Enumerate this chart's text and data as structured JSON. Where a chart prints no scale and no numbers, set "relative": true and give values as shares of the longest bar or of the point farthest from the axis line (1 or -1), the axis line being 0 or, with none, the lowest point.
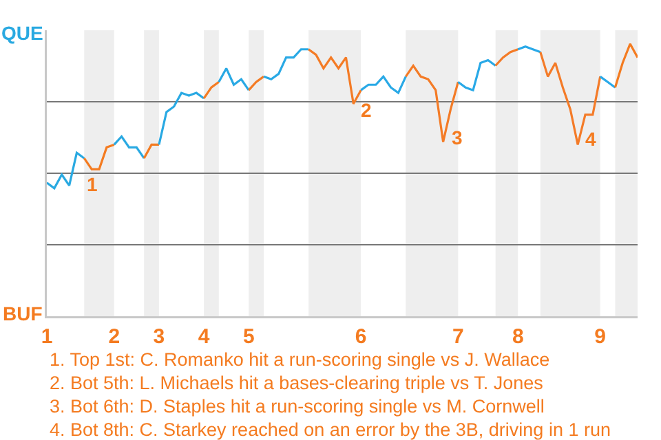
{
  "chart_data": {
    "type": "line",
    "relative": true,
    "marker": "none",
    "line_style": "solid",
    "grid": "y",
    "categories": [
      "1",
      null,
      null,
      null,
      null,
      null,
      null,
      null,
      null,
      "2",
      null,
      null,
      null,
      null,
      null,
      "3",
      null,
      null,
      null,
      null,
      null,
      "4",
      null,
      null,
      null,
      null,
      null,
      "5",
      null,
      null,
      null,
      null,
      null,
      null,
      null,
      null,
      null,
      null,
      null,
      null,
      null,
      null,
      "6",
      null,
      null,
      null,
      null,
      null,
      null,
      null,
      null,
      null,
      null,
      null,
      null,
      "7",
      null,
      null,
      null,
      null,
      null,
      null,
      null,
      "8",
      null,
      null,
      null,
      null,
      null,
      null,
      null,
      null,
      null,
      null,
      "9",
      null,
      null,
      null,
      null,
      null
    ],
    "series": [
      {
        "color": "#29a9e1",
        "values": [
          0.49,
          0.47,
          0.52,
          0.48,
          0.6,
          0.58,
          null,
          null,
          null,
          null,
          null,
          null,
          null,
          null,
          null,
          null,
          null,
          null,
          null,
          null,
          null,
          null,
          null,
          null,
          null,
          null,
          null,
          null,
          null,
          null,
          null,
          null,
          null,
          null,
          null,
          null,
          null,
          null,
          null,
          null,
          null,
          null,
          null,
          null,
          null,
          null,
          null,
          null,
          null,
          null,
          null,
          null,
          null,
          null,
          null,
          null,
          null,
          null,
          null,
          null,
          null,
          null,
          null,
          null,
          null,
          null,
          null,
          null,
          null,
          null,
          null,
          null,
          null,
          null,
          null,
          null,
          null,
          null,
          null,
          null
        ]
      },
      {
        "color": "#f47b20",
        "values": [
          null,
          null,
          null,
          null,
          null,
          0.58,
          0.54,
          0.54,
          0.62,
          0.63,
          null,
          null,
          null,
          null,
          null,
          null,
          null,
          null,
          null,
          null,
          null,
          null,
          null,
          null,
          null,
          null,
          null,
          null,
          null,
          null,
          null,
          null,
          null,
          null,
          null,
          null,
          null,
          null,
          null,
          null,
          null,
          null,
          null,
          null,
          null,
          null,
          null,
          null,
          null,
          null,
          null,
          null,
          null,
          null,
          null,
          null,
          null,
          null,
          null,
          null,
          null,
          null,
          null,
          null,
          null,
          null,
          null,
          null,
          null,
          null,
          null,
          null,
          null,
          null,
          null,
          null,
          null,
          null,
          null,
          null
        ]
      },
      {
        "color": "#29a9e2",
        "values": [
          null,
          null,
          null,
          null,
          null,
          null,
          null,
          null,
          null,
          0.63,
          0.66,
          0.62,
          0.62,
          0.58,
          null,
          null,
          null,
          null,
          null,
          null,
          null,
          null,
          null,
          null,
          null,
          null,
          null,
          null,
          null,
          null,
          null,
          null,
          null,
          null,
          null,
          null,
          null,
          null,
          null,
          null,
          null,
          null,
          null,
          null,
          null,
          null,
          null,
          null,
          null,
          null,
          null,
          null,
          null,
          null,
          null,
          null,
          null,
          null,
          null,
          null,
          null,
          null,
          null,
          null,
          null,
          null,
          null,
          null,
          null,
          null,
          null,
          null,
          null,
          null,
          null,
          null,
          null,
          null,
          null,
          null
        ]
      },
      {
        "color": "#f47b21",
        "values": [
          null,
          null,
          null,
          null,
          null,
          null,
          null,
          null,
          null,
          null,
          null,
          null,
          null,
          0.58,
          0.63,
          0.63,
          null,
          null,
          null,
          null,
          null,
          null,
          null,
          null,
          null,
          null,
          null,
          null,
          null,
          null,
          null,
          null,
          null,
          null,
          null,
          null,
          null,
          null,
          null,
          null,
          null,
          null,
          null,
          null,
          null,
          null,
          null,
          null,
          null,
          null,
          null,
          null,
          null,
          null,
          null,
          null,
          null,
          null,
          null,
          null,
          null,
          null,
          null,
          null,
          null,
          null,
          null,
          null,
          null,
          null,
          null,
          null,
          null,
          null,
          null,
          null,
          null,
          null,
          null,
          null
        ]
      },
      {
        "color": "#29a9e3",
        "values": [
          null,
          null,
          null,
          null,
          null,
          null,
          null,
          null,
          null,
          null,
          null,
          null,
          null,
          null,
          null,
          0.63,
          0.75,
          0.77,
          0.82,
          0.81,
          0.82,
          0.8,
          null,
          null,
          null,
          null,
          null,
          null,
          null,
          null,
          null,
          null,
          null,
          null,
          null,
          null,
          null,
          null,
          null,
          null,
          null,
          null,
          null,
          null,
          null,
          null,
          null,
          null,
          null,
          null,
          null,
          null,
          null,
          null,
          null,
          null,
          null,
          null,
          null,
          null,
          null,
          null,
          null,
          null,
          null,
          null,
          null,
          null,
          null,
          null,
          null,
          null,
          null,
          null,
          null,
          null,
          null,
          null,
          null,
          null
        ]
      },
      {
        "color": "#f47b22",
        "values": [
          null,
          null,
          null,
          null,
          null,
          null,
          null,
          null,
          null,
          null,
          null,
          null,
          null,
          null,
          null,
          null,
          null,
          null,
          null,
          null,
          null,
          0.8,
          0.84,
          0.86,
          null,
          null,
          null,
          null,
          null,
          null,
          null,
          null,
          null,
          null,
          null,
          null,
          null,
          null,
          null,
          null,
          null,
          null,
          null,
          null,
          null,
          null,
          null,
          null,
          null,
          null,
          null,
          null,
          null,
          null,
          null,
          null,
          null,
          null,
          null,
          null,
          null,
          null,
          null,
          null,
          null,
          null,
          null,
          null,
          null,
          null,
          null,
          null,
          null,
          null,
          null,
          null,
          null,
          null,
          null,
          null
        ]
      },
      {
        "color": "#29a9e4",
        "values": [
          null,
          null,
          null,
          null,
          null,
          null,
          null,
          null,
          null,
          null,
          null,
          null,
          null,
          null,
          null,
          null,
          null,
          null,
          null,
          null,
          null,
          null,
          null,
          0.86,
          0.91,
          0.85,
          0.87,
          0.83,
          null,
          null,
          null,
          null,
          null,
          null,
          null,
          null,
          null,
          null,
          null,
          null,
          null,
          null,
          null,
          null,
          null,
          null,
          null,
          null,
          null,
          null,
          null,
          null,
          null,
          null,
          null,
          null,
          null,
          null,
          null,
          null,
          null,
          null,
          null,
          null,
          null,
          null,
          null,
          null,
          null,
          null,
          null,
          null,
          null,
          null,
          null,
          null,
          null,
          null,
          null,
          null
        ]
      },
      {
        "color": "#f47b24",
        "values": [
          null,
          null,
          null,
          null,
          null,
          null,
          null,
          null,
          null,
          null,
          null,
          null,
          null,
          null,
          null,
          null,
          null,
          null,
          null,
          null,
          null,
          null,
          null,
          null,
          null,
          null,
          null,
          0.83,
          0.86,
          0.88,
          null,
          null,
          null,
          null,
          null,
          null,
          null,
          null,
          null,
          null,
          null,
          null,
          null,
          null,
          null,
          null,
          null,
          null,
          null,
          null,
          null,
          null,
          null,
          null,
          null,
          null,
          null,
          null,
          null,
          null,
          null,
          null,
          null,
          null,
          null,
          null,
          null,
          null,
          null,
          null,
          null,
          null,
          null,
          null,
          null,
          null,
          null,
          null,
          null,
          null
        ]
      },
      {
        "color": "#29a9e5",
        "values": [
          null,
          null,
          null,
          null,
          null,
          null,
          null,
          null,
          null,
          null,
          null,
          null,
          null,
          null,
          null,
          null,
          null,
          null,
          null,
          null,
          null,
          null,
          null,
          null,
          null,
          null,
          null,
          null,
          null,
          0.88,
          0.87,
          0.89,
          0.95,
          0.95,
          0.98,
          0.98,
          null,
          null,
          null,
          null,
          null,
          null,
          null,
          null,
          null,
          null,
          null,
          null,
          null,
          null,
          null,
          null,
          null,
          null,
          null,
          null,
          null,
          null,
          null,
          null,
          null,
          null,
          null,
          null,
          null,
          null,
          null,
          null,
          null,
          null,
          null,
          null,
          null,
          null,
          null,
          null,
          null,
          null,
          null,
          null
        ]
      },
      {
        "color": "#f47b25",
        "values": [
          null,
          null,
          null,
          null,
          null,
          null,
          null,
          null,
          null,
          null,
          null,
          null,
          null,
          null,
          null,
          null,
          null,
          null,
          null,
          null,
          null,
          null,
          null,
          null,
          null,
          null,
          null,
          null,
          null,
          null,
          null,
          null,
          null,
          null,
          null,
          0.98,
          0.96,
          0.91,
          0.95,
          0.91,
          0.95,
          0.78,
          0.83,
          null,
          null,
          null,
          null,
          null,
          null,
          null,
          null,
          null,
          null,
          null,
          null,
          null,
          null,
          null,
          null,
          null,
          null,
          null,
          null,
          null,
          null,
          null,
          null,
          null,
          null,
          null,
          null,
          null,
          null,
          null,
          null,
          null,
          null,
          null,
          null,
          null
        ]
      },
      {
        "color": "#29a9e6",
        "values": [
          null,
          null,
          null,
          null,
          null,
          null,
          null,
          null,
          null,
          null,
          null,
          null,
          null,
          null,
          null,
          null,
          null,
          null,
          null,
          null,
          null,
          null,
          null,
          null,
          null,
          null,
          null,
          null,
          null,
          null,
          null,
          null,
          null,
          null,
          null,
          null,
          null,
          null,
          null,
          null,
          null,
          null,
          0.83,
          0.85,
          0.85,
          0.88,
          0.84,
          0.82,
          0.88,
          null,
          null,
          null,
          null,
          null,
          null,
          null,
          null,
          null,
          null,
          null,
          null,
          null,
          null,
          null,
          null,
          null,
          null,
          null,
          null,
          null,
          null,
          null,
          null,
          null,
          null,
          null,
          null,
          null,
          null,
          null
        ]
      },
      {
        "color": "#f47b26",
        "values": [
          null,
          null,
          null,
          null,
          null,
          null,
          null,
          null,
          null,
          null,
          null,
          null,
          null,
          null,
          null,
          null,
          null,
          null,
          null,
          null,
          null,
          null,
          null,
          null,
          null,
          null,
          null,
          null,
          null,
          null,
          null,
          null,
          null,
          null,
          null,
          null,
          null,
          null,
          null,
          null,
          null,
          null,
          null,
          null,
          null,
          null,
          null,
          null,
          0.88,
          0.92,
          0.88,
          0.87,
          0.83,
          0.64,
          0.76,
          0.86,
          null,
          null,
          null,
          null,
          null,
          null,
          null,
          null,
          null,
          null,
          null,
          null,
          null,
          null,
          null,
          null,
          null,
          null,
          null,
          null,
          null,
          null,
          null,
          null
        ]
      },
      {
        "color": "#29a9e7",
        "values": [
          null,
          null,
          null,
          null,
          null,
          null,
          null,
          null,
          null,
          null,
          null,
          null,
          null,
          null,
          null,
          null,
          null,
          null,
          null,
          null,
          null,
          null,
          null,
          null,
          null,
          null,
          null,
          null,
          null,
          null,
          null,
          null,
          null,
          null,
          null,
          null,
          null,
          null,
          null,
          null,
          null,
          null,
          null,
          null,
          null,
          null,
          null,
          null,
          null,
          null,
          null,
          null,
          null,
          null,
          null,
          0.86,
          0.84,
          0.83,
          0.93,
          0.94,
          0.92,
          null,
          null,
          null,
          null,
          null,
          null,
          null,
          null,
          null,
          null,
          null,
          null,
          null,
          null,
          null,
          null,
          null,
          null,
          null
        ]
      },
      {
        "color": "#f47b27",
        "values": [
          null,
          null,
          null,
          null,
          null,
          null,
          null,
          null,
          null,
          null,
          null,
          null,
          null,
          null,
          null,
          null,
          null,
          null,
          null,
          null,
          null,
          null,
          null,
          null,
          null,
          null,
          null,
          null,
          null,
          null,
          null,
          null,
          null,
          null,
          null,
          null,
          null,
          null,
          null,
          null,
          null,
          null,
          null,
          null,
          null,
          null,
          null,
          null,
          null,
          null,
          null,
          null,
          null,
          null,
          null,
          null,
          null,
          null,
          null,
          null,
          0.92,
          0.95,
          0.97,
          0.98,
          null,
          null,
          null,
          null,
          null,
          null,
          null,
          null,
          null,
          null,
          null,
          null,
          null,
          null,
          null,
          null
        ]
      },
      {
        "color": "#29a9e8",
        "values": [
          null,
          null,
          null,
          null,
          null,
          null,
          null,
          null,
          null,
          null,
          null,
          null,
          null,
          null,
          null,
          null,
          null,
          null,
          null,
          null,
          null,
          null,
          null,
          null,
          null,
          null,
          null,
          null,
          null,
          null,
          null,
          null,
          null,
          null,
          null,
          null,
          null,
          null,
          null,
          null,
          null,
          null,
          null,
          null,
          null,
          null,
          null,
          null,
          null,
          null,
          null,
          null,
          null,
          null,
          null,
          null,
          null,
          null,
          null,
          null,
          null,
          null,
          null,
          0.98,
          0.99,
          0.98,
          0.97,
          null,
          null,
          null,
          null,
          null,
          null,
          null,
          null,
          null,
          null,
          null,
          null,
          null
        ]
      },
      {
        "color": "#f47b28",
        "values": [
          null,
          null,
          null,
          null,
          null,
          null,
          null,
          null,
          null,
          null,
          null,
          null,
          null,
          null,
          null,
          null,
          null,
          null,
          null,
          null,
          null,
          null,
          null,
          null,
          null,
          null,
          null,
          null,
          null,
          null,
          null,
          null,
          null,
          null,
          null,
          null,
          null,
          null,
          null,
          null,
          null,
          null,
          null,
          null,
          null,
          null,
          null,
          null,
          null,
          null,
          null,
          null,
          null,
          null,
          null,
          null,
          null,
          null,
          null,
          null,
          null,
          null,
          null,
          null,
          null,
          null,
          0.97,
          0.88,
          0.93,
          0.84,
          0.76,
          0.63,
          0.74,
          0.74,
          0.88,
          null,
          null,
          null,
          null,
          null
        ]
      },
      {
        "color": "#29a9e9",
        "values": [
          null,
          null,
          null,
          null,
          null,
          null,
          null,
          null,
          null,
          null,
          null,
          null,
          null,
          null,
          null,
          null,
          null,
          null,
          null,
          null,
          null,
          null,
          null,
          null,
          null,
          null,
          null,
          null,
          null,
          null,
          null,
          null,
          null,
          null,
          null,
          null,
          null,
          null,
          null,
          null,
          null,
          null,
          null,
          null,
          null,
          null,
          null,
          null,
          null,
          null,
          null,
          null,
          null,
          null,
          null,
          null,
          null,
          null,
          null,
          null,
          null,
          null,
          null,
          null,
          null,
          null,
          null,
          null,
          null,
          null,
          null,
          null,
          null,
          null,
          0.88,
          0.86,
          0.84,
          null,
          null,
          null
        ]
      },
      {
        "color": "#f47b20",
        "values": [
          null,
          null,
          null,
          null,
          null,
          null,
          null,
          null,
          null,
          null,
          null,
          null,
          null,
          null,
          null,
          null,
          null,
          null,
          null,
          null,
          null,
          null,
          null,
          null,
          null,
          null,
          null,
          null,
          null,
          null,
          null,
          null,
          null,
          null,
          null,
          null,
          null,
          null,
          null,
          null,
          null,
          null,
          null,
          null,
          null,
          null,
          null,
          null,
          null,
          null,
          null,
          null,
          null,
          null,
          null,
          null,
          null,
          null,
          null,
          null,
          null,
          null,
          null,
          null,
          null,
          null,
          null,
          null,
          null,
          null,
          null,
          null,
          null,
          null,
          null,
          null,
          0.84,
          0.93,
          1,
          0.95
        ]
      }
    ],
    "annotations": [
      "QUE",
      "BUF",
      "1",
      "2",
      "3",
      "4",
      "1. Top 1st: C. Romanko hit a run-scoring single vs J. Wallace",
      "2. Bot 5th: L. Michaels hit a bases-clearing triple vs T. Jones",
      "3. Bot 6th: D. Staples hit a run-scoring single vs M. Cornwell",
      "4. Bot 8th: C. Starkey reached on an error by the 3B, driving in 1 run"
    ]
  }
}
